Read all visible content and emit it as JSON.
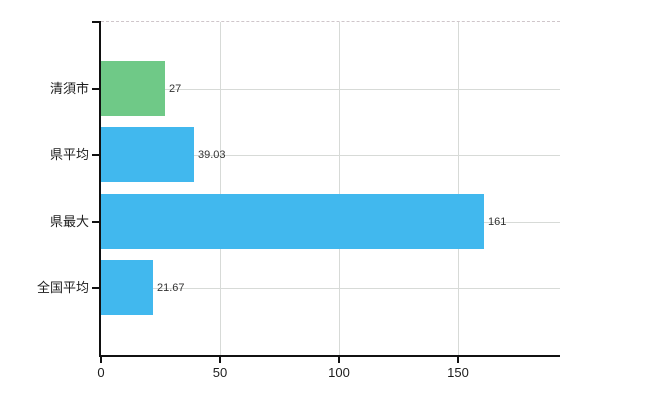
{
  "page": {
    "background": "#ffffff"
  },
  "chart_data": {
    "type": "bar",
    "orientation": "horizontal",
    "title": "",
    "xlabel": "",
    "ylabel": "",
    "categories": [
      "清須市",
      "県平均",
      "県最大",
      "全国平均"
    ],
    "values": [
      27,
      39.03,
      161,
      21.67
    ],
    "value_labels": [
      "27",
      "39.03",
      "161",
      "21.67"
    ],
    "bar_colors": [
      "#6fc987",
      "#41b8ee",
      "#41b8ee",
      "#41b8ee"
    ],
    "x_tick_labels": [
      "0",
      "50",
      "100",
      "150"
    ],
    "x_tick_values": [
      0,
      50,
      100,
      150
    ],
    "xlim": [
      0,
      193
    ],
    "grid": true,
    "legend": "none",
    "colors": {
      "axis": "#111111",
      "grid": "#d7dad7",
      "top_border": "#cfc6ca",
      "category_label": "#1c1c1c",
      "value_label": "#333333",
      "tick_label": "#1c1c1c"
    }
  }
}
